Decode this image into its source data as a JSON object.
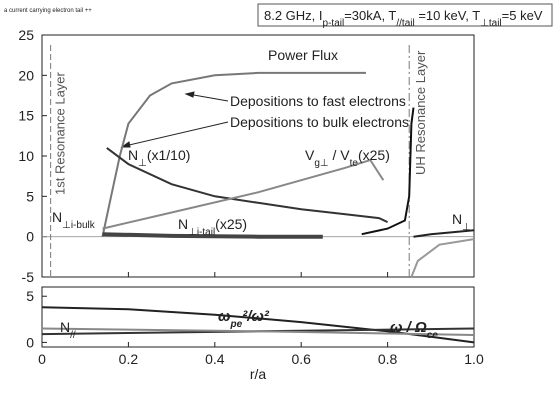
{
  "note_top": "a current carrying electron tail ++",
  "title_parts": [
    "8.2 GHz, I",
    "p-tail",
    "=30kA, T",
    "//tail",
    " =10 keV, T",
    "⊥tail",
    "=5 keV"
  ],
  "chart_data": [
    {
      "type": "line",
      "xlim": [
        0,
        1
      ],
      "ylim": [
        -5,
        25
      ],
      "yticks": [
        -5,
        0,
        5,
        10,
        15,
        20,
        25
      ],
      "vlines": [
        {
          "x": 0.02,
          "label": "1st Resonance Layer"
        },
        {
          "x": 0.85,
          "label": "UH Resonance Layer"
        }
      ],
      "series": [
        {
          "color": "#777777",
          "x": [
            0.14,
            0.16,
            0.18,
            0.2,
            0.25,
            0.3,
            0.4,
            0.5,
            0.6,
            0.7,
            0.75
          ],
          "values": [
            0,
            5,
            10,
            14,
            17.5,
            19,
            20,
            20.3,
            20.3,
            20.3,
            20.3
          ]
        },
        {
          "color": "#333333",
          "x": [
            0.15,
            0.2,
            0.3,
            0.4,
            0.5,
            0.6,
            0.7,
            0.78,
            0.8
          ],
          "values": [
            11,
            9,
            6.5,
            5,
            4.2,
            3.4,
            2.8,
            2.3,
            1.8
          ]
        },
        {
          "color": "#888888",
          "x": [
            0.14,
            0.3,
            0.5,
            0.7,
            0.76,
            0.79
          ],
          "values": [
            1,
            3,
            5.5,
            8.5,
            9.5,
            7
          ]
        },
        {
          "color": "#444444",
          "x": [
            0.14,
            0.3,
            0.5,
            0.65
          ],
          "values": [
            0.3,
            0.1,
            0,
            0
          ]
        },
        {
          "color": "#111111",
          "x": [
            0.74,
            0.8,
            0.84,
            0.85,
            0.855,
            0.86
          ],
          "values": [
            0.3,
            1,
            2,
            5,
            14,
            16
          ]
        },
        {
          "color": "#222222",
          "x": [
            0.86,
            0.9,
            1.0
          ],
          "values": [
            0,
            0.3,
            0.8
          ]
        },
        {
          "color": "#999999",
          "x": [
            0.855,
            0.87,
            0.92,
            1.0
          ],
          "values": [
            -5,
            -3,
            -1,
            -0.3
          ]
        }
      ],
      "labels": [
        [
          "Power Flux"
        ],
        [
          "Depositions to fast electrons"
        ],
        [
          "Depositions to bulk electrons"
        ],
        [
          "N",
          "⊥",
          "(x1/10)"
        ],
        [
          "V",
          "g⊥",
          " / V",
          "te",
          "(x25)"
        ],
        [
          "N",
          "⊥i-bulk"
        ],
        [
          "N",
          "⊥i-tail",
          "(x25)"
        ],
        [
          "N",
          "⊥"
        ]
      ]
    },
    {
      "type": "line",
      "xlim": [
        0,
        1
      ],
      "ylim": [
        -0.5,
        6
      ],
      "yticks": [
        0,
        5
      ],
      "xticks": [
        0,
        0.2,
        0.4,
        0.6,
        0.8,
        {
          "value": 1,
          "label": "1.0"
        }
      ],
      "xlabel": "r/a",
      "series": [
        {
          "color": "#222222",
          "x": [
            0,
            0.2,
            0.4,
            0.6,
            0.8,
            0.9,
            1.0
          ],
          "values": [
            3.8,
            3.6,
            3,
            2.2,
            1.2,
            0.6,
            0
          ]
        },
        {
          "color": "#333333",
          "x": [
            0,
            0.5,
            1.0
          ],
          "values": [
            0.9,
            1.2,
            1.5
          ]
        },
        {
          "color": "#888888",
          "x": [
            0,
            0.5,
            1.0
          ],
          "values": [
            1.5,
            1.2,
            0.8
          ]
        }
      ],
      "labels": [
        [
          "ω",
          "pe",
          "²/ω²"
        ],
        [
          "ω / Ω",
          "ce"
        ],
        [
          "N",
          "//"
        ]
      ]
    }
  ]
}
